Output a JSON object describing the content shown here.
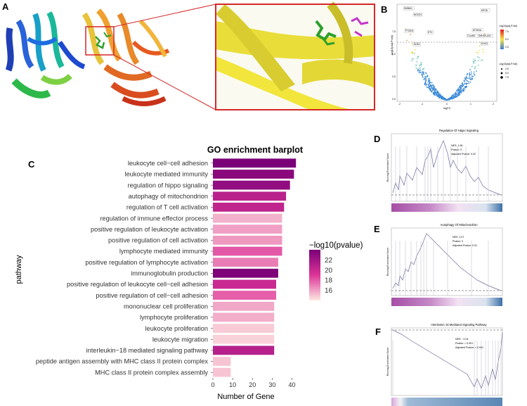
{
  "panel_labels": {
    "a": "A",
    "b": "B",
    "c": "C",
    "d": "D",
    "e": "E",
    "f": "F"
  },
  "colors": {
    "structure_bg": "#ffffff",
    "zoom_border": "#d62728",
    "helix_yellow": "#f2e53c",
    "ligand_green": "#2ca02c",
    "ligand_magenta": "#c535c8"
  },
  "volcano": {
    "ylabel": "-log10(adj.P.Val)",
    "xlabel": "logFC",
    "legend_color_title": "-log10(adj.P.Val)",
    "legend_color_ticks": [
      "7.5",
      "5.0",
      "2.5"
    ],
    "legend_size_title": "-log10(adj.P.Val)",
    "legend_size_ticks": [
      "2.5",
      "5.0",
      "7.5"
    ],
    "y_ticks": [
      "7.5",
      "5.0",
      "2.5",
      "0.0"
    ],
    "x_ticks": [
      "-2",
      "-1",
      "0",
      "1",
      "2"
    ],
    "gene_labels": [
      "SMIM41",
      "NOXO1",
      "PTGDS",
      "DOK1",
      "ETV",
      "ATXN1A",
      "C1orf52",
      "SNHG9-AS1",
      "DOK3",
      "KIF2A"
    ]
  },
  "chart_data": {
    "type": "bar",
    "title": "GO enrichment barplot",
    "xlabel": "Number of Gene",
    "ylabel": "pathway",
    "xlim": [
      0,
      43
    ],
    "x_ticks": [
      "0",
      "10",
      "20",
      "30",
      "40"
    ],
    "legend_title": "−log10(pvalue)",
    "legend_ticks": [
      "22",
      "20",
      "18",
      "16"
    ],
    "legend_range": [
      14,
      24
    ],
    "categories": [
      "leukocyte cell−cell adhesion",
      "leukocyte mediated immunity",
      "regulation of hippo signaling",
      "autophagy of mitochondrion",
      "regulation of T cell activation",
      "regulation of immune effector process",
      "positive regulation of leukocyte activation",
      "positive regulation of cell activation",
      "lymphocyte mediated immunity",
      "positive regulation of lymphocyte activation",
      "immunoglobulin production",
      "positive regulation of leukocyte cell−cell adhesion",
      "positive regulation of cell−cell adhesion",
      "mononuclear cell proliferation",
      "lymphocyte proliferation",
      "leukocyte proliferation",
      "leukocyte migration",
      "interleukin−18 mediated signaling pathway",
      "peptide antigen assembly with MHC class II protein complex",
      "MHC class II protein complex assembly"
    ],
    "values": [
      42,
      41,
      39,
      37,
      36,
      35,
      35,
      35,
      35,
      33,
      33,
      32,
      32,
      31,
      31,
      31,
      31,
      31,
      9,
      9
    ],
    "neglog10p": [
      24.0,
      23.2,
      22.8,
      20.8,
      20.5,
      15.5,
      16.0,
      16.2,
      18.0,
      17.0,
      23.8,
      20.0,
      17.8,
      15.8,
      15.6,
      14.8,
      14.6,
      21.0,
      15.0,
      15.0
    ]
  },
  "gsea": [
    {
      "title": "Regulation Of Hippo Signaling",
      "stats": [
        "NES: 1.96",
        "Pvalue: 0",
        "Adjusted Pvalue: 0.02"
      ],
      "ylabel": "Running Enrichment Score"
    },
    {
      "title": "Autophagy Of Mitochondrion",
      "stats": [
        "NES: 2.07",
        "Pvalue: 0",
        "Adjusted Pvalue: 0.01"
      ],
      "ylabel": "Running Enrichment Score"
    },
    {
      "title": "Interleukin 18 Mediated Signaling Pathway",
      "stats": [
        "NES: −2.04",
        "Pvalue: < 0.001",
        "Adjusted Pvalue: < 0.001"
      ],
      "ylabel": "Running Enrichment Score"
    }
  ]
}
